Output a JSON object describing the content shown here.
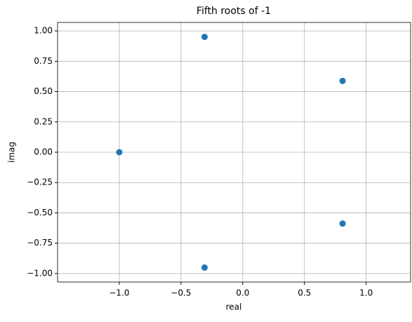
{
  "chart_data": {
    "type": "scatter",
    "title": "Fifth roots of -1",
    "x_label": "real",
    "y_label": "imag",
    "series": [
      {
        "color": "#1f77b4",
        "x": [
          0.809,
          -0.309,
          -1.0,
          -0.309,
          0.809
        ],
        "values": [
          0.588,
          0.951,
          0.0,
          -0.951,
          -0.588
        ]
      }
    ],
    "xlim": [
      -1.5,
      1.36
    ],
    "ylim": [
      -1.07,
      1.07
    ],
    "xticks": [
      {
        "value": -1.0,
        "label": "−1.0"
      },
      {
        "value": -0.5,
        "label": "−0.5"
      },
      {
        "value": 0,
        "label": "0.0"
      },
      {
        "value": 0.5,
        "label": "0.5"
      },
      {
        "value": 1.0,
        "label": "1.0"
      }
    ],
    "yticks": [
      {
        "value": -1.0,
        "label": "−1.00"
      },
      {
        "value": -0.75,
        "label": "−0.75"
      },
      {
        "value": -0.5,
        "label": "−0.50"
      },
      {
        "value": -0.25,
        "label": "−0.25"
      },
      {
        "value": 0,
        "label": "0.00"
      },
      {
        "value": 0.25,
        "label": "0.25"
      },
      {
        "value": 0.5,
        "label": "0.50"
      },
      {
        "value": 0.75,
        "label": "0.75"
      },
      {
        "value": 1.0,
        "label": "1.00"
      }
    ],
    "grid": true
  }
}
